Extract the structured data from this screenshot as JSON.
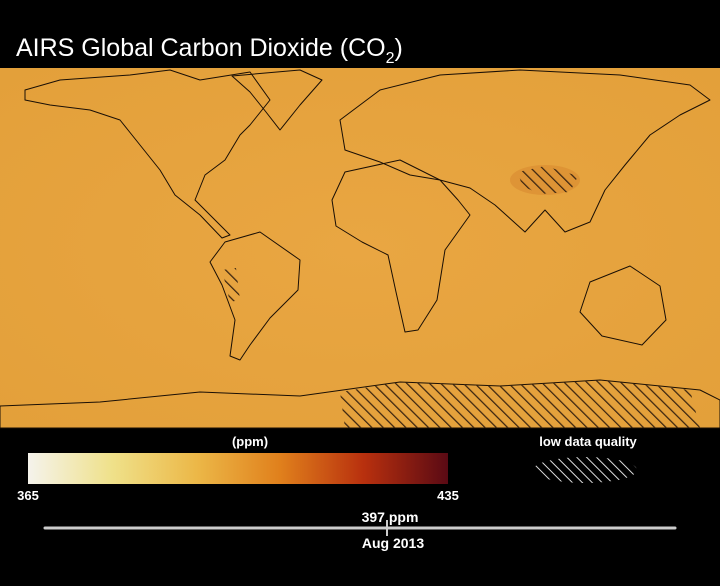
{
  "header": {
    "title": "AIRS Global Carbon Dioxide (CO",
    "subscript": "2",
    "suffix": ")"
  },
  "colorbar": {
    "label": "(ppm)",
    "min": "365",
    "max": "435"
  },
  "legend": {
    "label": "low data quality"
  },
  "timeline": {
    "value_label": "397 ppm",
    "date": "Aug 2013"
  }
}
